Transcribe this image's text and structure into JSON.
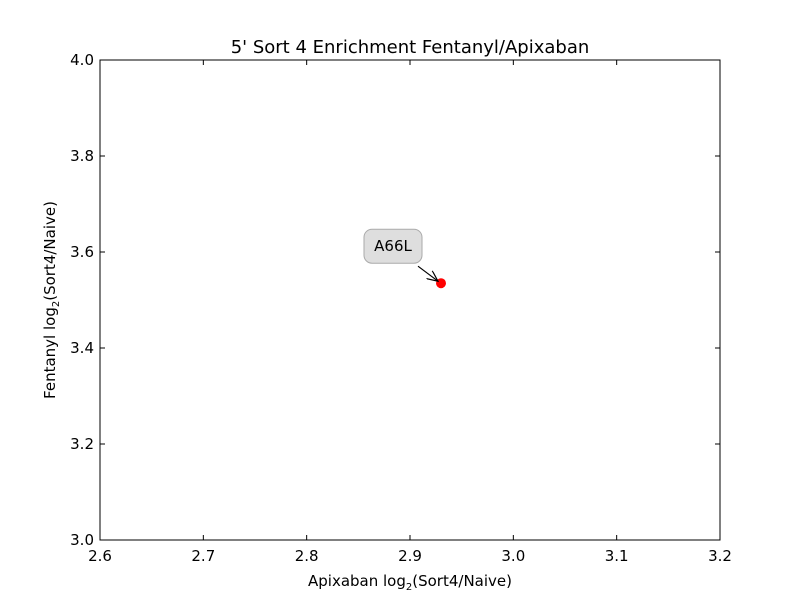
{
  "chart_data": {
    "type": "scatter",
    "title": "5' Sort 4 Enrichment Fentanyl/Apixaban",
    "xlabel": {
      "prefix": "Apixaban log",
      "sub": "2",
      "suffix": "(Sort4/Naive)"
    },
    "ylabel": {
      "prefix": "Fentanyl log",
      "sub": "2",
      "suffix": "(Sort4/Naive)"
    },
    "xlim": [
      2.6,
      3.2
    ],
    "ylim": [
      3.0,
      4.0
    ],
    "xticks": [
      "2.6",
      "2.7",
      "2.8",
      "2.9",
      "3.0",
      "3.1",
      "3.2"
    ],
    "yticks": [
      "3.0",
      "3.2",
      "3.4",
      "3.6",
      "3.8",
      "4.0"
    ],
    "grid": false,
    "points": [
      {
        "x": 2.93,
        "y": 3.535,
        "color": "#ff0000",
        "label": "A66L"
      }
    ],
    "annotations": [
      {
        "text": "A66L",
        "x": 2.93,
        "y": 3.535,
        "box_color": "#dedede",
        "box_edge": "#aaaaaa"
      }
    ]
  }
}
